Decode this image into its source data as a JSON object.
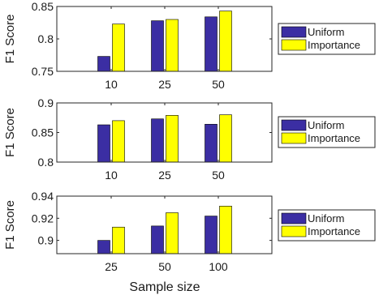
{
  "colors": {
    "uniform": "#3b2ea3",
    "importance": "#ffff00",
    "axis": "#262626"
  },
  "xlabel": "Sample size",
  "chart_data": [
    {
      "type": "bar",
      "ylabel": "F1 Score",
      "categories": [
        "10",
        "25",
        "50"
      ],
      "ylim": [
        0.75,
        0.85
      ],
      "yticks": [
        0.75,
        0.8,
        0.85
      ],
      "ytick_labels": [
        "0.75",
        "0.8",
        "0.85"
      ],
      "legend_position": "right",
      "series": [
        {
          "name": "Uniform",
          "values": [
            0.773,
            0.828,
            0.834
          ]
        },
        {
          "name": "Importance",
          "values": [
            0.823,
            0.83,
            0.843
          ]
        }
      ]
    },
    {
      "type": "bar",
      "ylabel": "F1 Score",
      "categories": [
        "10",
        "25",
        "50"
      ],
      "ylim": [
        0.8,
        0.9
      ],
      "yticks": [
        0.8,
        0.85,
        0.9
      ],
      "ytick_labels": [
        "0.8",
        "0.85",
        "0.9"
      ],
      "legend_position": "right",
      "series": [
        {
          "name": "Uniform",
          "values": [
            0.863,
            0.873,
            0.864
          ]
        },
        {
          "name": "Importance",
          "values": [
            0.87,
            0.879,
            0.88
          ]
        }
      ]
    },
    {
      "type": "bar",
      "ylabel": "F1 Score",
      "categories": [
        "25",
        "50",
        "100"
      ],
      "ylim": [
        0.888,
        0.94
      ],
      "yticks": [
        0.9,
        0.92,
        0.94
      ],
      "ytick_labels": [
        "0.9",
        "0.92",
        "0.94"
      ],
      "legend_position": "right",
      "series": [
        {
          "name": "Uniform",
          "values": [
            0.9,
            0.913,
            0.922
          ]
        },
        {
          "name": "Importance",
          "values": [
            0.912,
            0.925,
            0.931
          ]
        }
      ]
    }
  ]
}
